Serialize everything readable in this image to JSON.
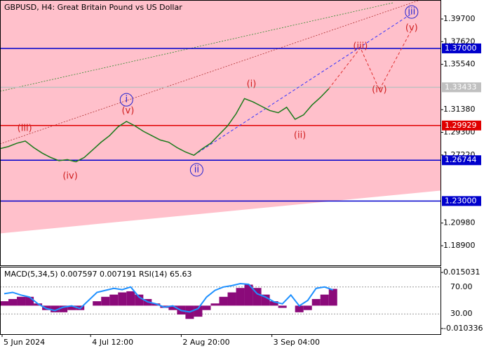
{
  "chart_data": [
    {
      "type": "line",
      "title": "GBPUSD, H4:  Great Britain Pound vs US Dollar",
      "xlim": [
        0,
        209
      ],
      "ylim": [
        1.171,
        1.4144
      ],
      "yticks": [
        {
          "value": 1.397,
          "label": "1.39700"
        },
        {
          "value": 1.3762,
          "label": "1.37620"
        },
        {
          "value": 1.3554,
          "label": "1.35540"
        },
        {
          "value": 1.3138,
          "label": "1.31380"
        },
        {
          "value": 1.293,
          "label": "1.29300"
        },
        {
          "value": 1.2722,
          "label": "1.27220"
        },
        {
          "value": 1.2098,
          "label": "1.20980"
        },
        {
          "value": 1.189,
          "label": "1.18900"
        }
      ],
      "x": [
        0,
        4,
        8,
        12,
        16,
        20,
        24,
        28,
        32,
        36,
        40,
        44,
        48,
        52,
        56,
        60,
        64,
        68,
        72,
        76,
        80,
        84,
        88,
        92,
        96,
        100,
        104,
        108,
        112,
        116,
        120,
        124,
        128,
        132,
        136,
        140,
        144,
        148,
        152,
        156
      ],
      "values": [
        1.278,
        1.28,
        1.283,
        1.285,
        1.279,
        1.274,
        1.27,
        1.267,
        1.268,
        1.266,
        1.27,
        1.277,
        1.284,
        1.29,
        1.298,
        1.303,
        1.299,
        1.294,
        1.29,
        1.286,
        1.284,
        1.279,
        1.275,
        1.272,
        1.278,
        1.283,
        1.291,
        1.299,
        1.31,
        1.324,
        1.321,
        1.317,
        1.313,
        1.311,
        1.316,
        1.305,
        1.309,
        1.318,
        1.325,
        1.333
      ],
      "color": "#1a7a1a",
      "levels": [
        {
          "value": 1.37,
          "label": "1.37000",
          "color": "#0000cc"
        },
        {
          "value": 1.33433,
          "label": "1.33433",
          "color": "#c0c0c0"
        },
        {
          "value": 1.29929,
          "label": "1.29929",
          "color": "#e00000"
        },
        {
          "value": 1.26744,
          "label": "1.26744",
          "color": "#0000cc"
        },
        {
          "value": 1.23,
          "label": "1.23000",
          "color": "#0000cc"
        }
      ],
      "forecast": [
        {
          "x": [
            92,
            195
          ],
          "values": [
            1.272,
            1.4015
          ],
          "color": "#3333ff"
        },
        {
          "x": [
            156,
            171,
            180,
            195
          ],
          "values": [
            1.333,
            1.3705,
            1.332,
            1.386
          ],
          "color": "#e03030"
        }
      ],
      "annotations": [
        {
          "text": "(iii)",
          "x": 11.7,
          "y": 1.2965,
          "color": "#d02020",
          "circled": false
        },
        {
          "text": "(iv)",
          "x": 33.3,
          "y": 1.2528,
          "color": "#d02020",
          "circled": false
        },
        {
          "text": "i",
          "x": 60,
          "y": 1.3229,
          "color": "#2020d0",
          "circled": true
        },
        {
          "text": "(v)",
          "x": 60.7,
          "y": 1.3126,
          "color": "#d02020",
          "circled": false
        },
        {
          "text": "ii",
          "x": 93.3,
          "y": 1.2586,
          "color": "#2020d0",
          "circled": true
        },
        {
          "text": "(i)",
          "x": 119.3,
          "y": 1.3371,
          "color": "#d02020",
          "circled": false
        },
        {
          "text": "(ii)",
          "x": 142.3,
          "y": 1.2901,
          "color": "#d02020",
          "circled": false
        },
        {
          "text": "(iii)",
          "x": 171,
          "y": 1.3719,
          "color": "#d02020",
          "circled": false
        },
        {
          "text": "(iv)",
          "x": 180,
          "y": 1.332,
          "color": "#d02020",
          "circled": false
        },
        {
          "text": "(v)",
          "x": 195.3,
          "y": 1.3886,
          "color": "#d02020",
          "circled": false
        },
        {
          "text": "iii",
          "x": 195.3,
          "y": 1.4034,
          "color": "#2020d0",
          "circled": true
        }
      ]
    },
    {
      "type": "bar",
      "title": "MACD(5,34,5) 0.007597 0.007191 RSI(14) 65.63",
      "xlim": [
        0,
        209
      ],
      "xticks": [
        {
          "value": 1,
          "label": "5 Jun 2024"
        },
        {
          "value": 43,
          "label": "4 Jul 12:00"
        },
        {
          "value": 86,
          "label": "2 Aug 20:00"
        },
        {
          "value": 129,
          "label": "3 Sep 04:00"
        }
      ],
      "ylim": [
        -0.0129,
        0.0176
      ],
      "yticks": [
        {
          "value": 0.015031,
          "label": "0.015031"
        },
        {
          "value": -0.010336,
          "label": "-0.010336"
        }
      ],
      "x": [
        0,
        4,
        8,
        12,
        16,
        20,
        24,
        28,
        32,
        36,
        40,
        44,
        48,
        52,
        56,
        60,
        64,
        68,
        72,
        76,
        80,
        84,
        88,
        92,
        96,
        100,
        104,
        108,
        112,
        116,
        120,
        124,
        128,
        132,
        136,
        140,
        144,
        148,
        152,
        156
      ],
      "values": [
        0.002,
        0.003,
        0.004,
        0.004,
        0.001,
        -0.002,
        -0.003,
        -0.003,
        -0.002,
        -0.002,
        0.0,
        0.002,
        0.004,
        0.005,
        0.006,
        0.0065,
        0.005,
        0.003,
        0.001,
        -0.001,
        -0.002,
        -0.004,
        -0.006,
        -0.005,
        -0.002,
        0.001,
        0.004,
        0.006,
        0.008,
        0.0095,
        0.008,
        0.005,
        0.002,
        -0.001,
        0.0,
        -0.003,
        -0.002,
        0.003,
        0.005,
        0.0076
      ],
      "color": "#8b0a7a",
      "y2lim": [
        0,
        100
      ],
      "y2ticks": [
        {
          "value": 70,
          "label": "70.00"
        },
        {
          "value": 30,
          "label": "30.00"
        }
      ],
      "line": {
        "values": [
          60,
          62,
          58,
          55,
          45,
          38,
          35,
          40,
          42,
          38,
          50,
          62,
          65,
          68,
          66,
          70,
          55,
          48,
          45,
          40,
          42,
          35,
          33,
          38,
          55,
          65,
          70,
          72,
          75,
          74,
          60,
          55,
          48,
          45,
          58,
          42,
          50,
          68,
          70,
          65.63
        ],
        "color": "#1e90ff",
        "axis": "y2"
      }
    }
  ]
}
